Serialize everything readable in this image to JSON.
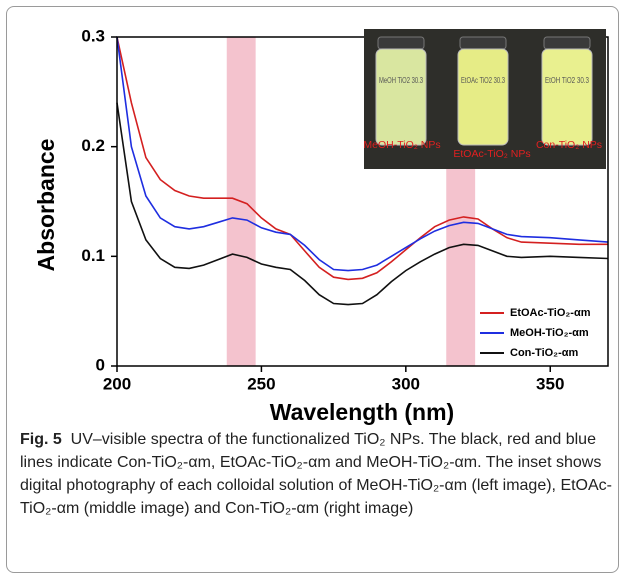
{
  "chart_data": {
    "type": "line",
    "x_label": "Wavelength (nm)",
    "y_label": "Absorbance",
    "x": [
      200,
      205,
      210,
      215,
      220,
      225,
      230,
      235,
      240,
      245,
      250,
      255,
      260,
      265,
      270,
      275,
      280,
      285,
      290,
      295,
      300,
      305,
      310,
      315,
      320,
      325,
      330,
      335,
      340,
      350,
      360,
      370
    ],
    "series": [
      {
        "name": "EtOAc-TiO₂-αm",
        "color": "#d42020",
        "values": [
          0.3,
          0.24,
          0.19,
          0.17,
          0.16,
          0.155,
          0.153,
          0.153,
          0.153,
          0.148,
          0.135,
          0.125,
          0.12,
          0.105,
          0.09,
          0.081,
          0.079,
          0.08,
          0.085,
          0.095,
          0.106,
          0.117,
          0.127,
          0.133,
          0.136,
          0.134,
          0.125,
          0.117,
          0.113,
          0.112,
          0.111,
          0.111
        ]
      },
      {
        "name": "MeOH-TiO₂-αm",
        "color": "#1f2ee0",
        "values": [
          0.3,
          0.2,
          0.155,
          0.135,
          0.127,
          0.125,
          0.127,
          0.131,
          0.135,
          0.133,
          0.126,
          0.122,
          0.12,
          0.11,
          0.097,
          0.088,
          0.087,
          0.088,
          0.092,
          0.1,
          0.108,
          0.116,
          0.123,
          0.128,
          0.131,
          0.13,
          0.125,
          0.12,
          0.118,
          0.117,
          0.115,
          0.113
        ]
      },
      {
        "name": "Con-TiO₂-αm",
        "color": "#111111",
        "values": [
          0.24,
          0.15,
          0.115,
          0.098,
          0.09,
          0.089,
          0.092,
          0.097,
          0.102,
          0.099,
          0.093,
          0.09,
          0.088,
          0.078,
          0.065,
          0.057,
          0.056,
          0.057,
          0.065,
          0.077,
          0.087,
          0.095,
          0.102,
          0.108,
          0.111,
          0.11,
          0.105,
          0.1,
          0.099,
          0.1,
          0.099,
          0.098
        ]
      }
    ],
    "bands": [
      [
        238,
        248
      ],
      [
        314,
        324
      ]
    ],
    "band_color": "#f2b8c6",
    "xlim": [
      200,
      370
    ],
    "xticks": [
      200,
      250,
      300,
      350
    ],
    "ylim": [
      0,
      0.3
    ],
    "yticks": [
      0,
      0.1,
      0.2,
      0.3
    ],
    "legend": "lower right",
    "inset": {
      "vial_labels": [
        "MeOH TiO2 30.3",
        "EtOAc TiO2 30.3",
        "EtOH TiO2 30.3"
      ],
      "captions": [
        "MeOH-TiO₂ NPs",
        "EtOAc-TiO₂ NPs",
        "Con-TiO₂ NPs"
      ]
    }
  },
  "caption": {
    "label": "Fig. 5",
    "text": "UV–visible spectra of the functionalized TiO₂ NPs. The black, red and blue lines indicate Con-TiO₂-αm, EtOAc-TiO₂-αm and MeOH-TiO₂-αm. The inset shows digital photography of each colloidal solution of MeOH-TiO₂-αm (left image), EtOAc-TiO₂-αm (middle image) and Con-TiO₂-αm (right image)"
  }
}
